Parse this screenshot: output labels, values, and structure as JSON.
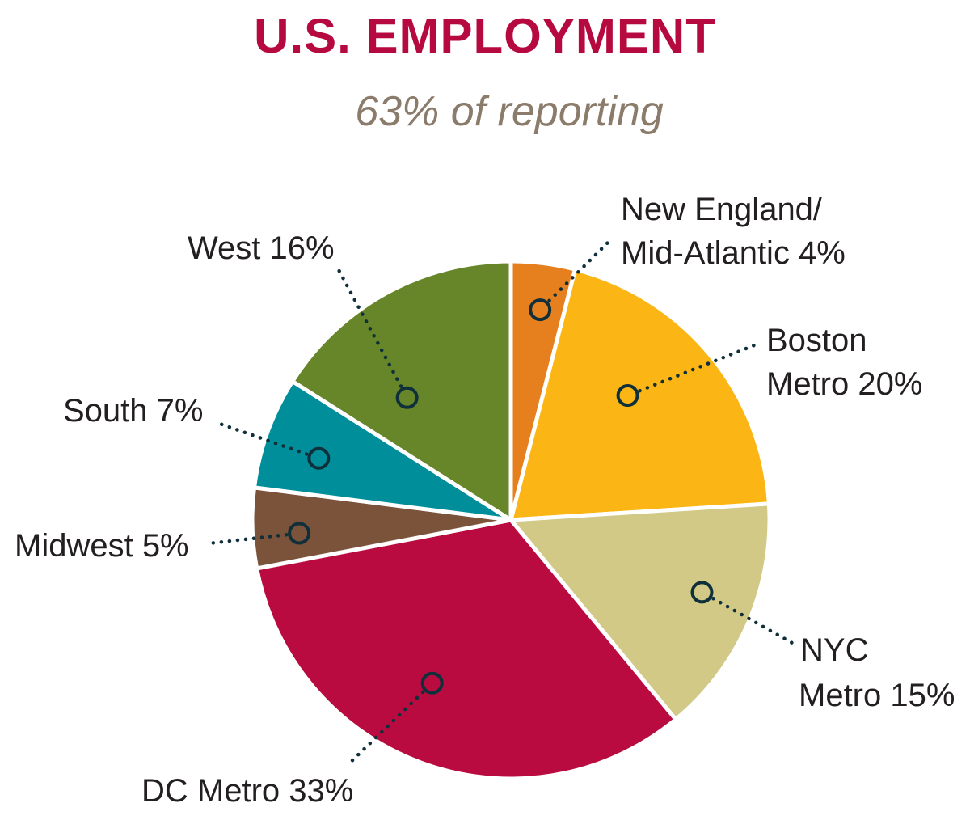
{
  "title": "U.S. EMPLOYMENT",
  "subtitle": "63% of reporting",
  "colors": {
    "title": "#b5093f",
    "subtitle": "#8b7b6b",
    "label": "#231f20",
    "leader": "#0f2f3a",
    "slice_border": "#ffffff"
  },
  "chart_data": {
    "type": "pie",
    "title": "U.S. EMPLOYMENT",
    "subtitle": "63% of reporting",
    "slices": [
      {
        "label_lines": [
          "New England/",
          "Mid-Atlantic 4%"
        ],
        "value": 4,
        "color": "#e6801f"
      },
      {
        "label_lines": [
          "Boston",
          "Metro 20%"
        ],
        "value": 20,
        "color": "#fbb615"
      },
      {
        "label_lines": [
          "NYC",
          "Metro 15%"
        ],
        "value": 15,
        "color": "#d1c985"
      },
      {
        "label_lines": [
          "DC Metro 33%"
        ],
        "value": 33,
        "color": "#b90b3f"
      },
      {
        "label_lines": [
          "Midwest 5%"
        ],
        "value": 5,
        "color": "#7b523a"
      },
      {
        "label_lines": [
          "South 7%"
        ],
        "value": 7,
        "color": "#008e9b"
      },
      {
        "label_lines": [
          "West 16%"
        ],
        "value": 16,
        "color": "#678529"
      }
    ]
  }
}
